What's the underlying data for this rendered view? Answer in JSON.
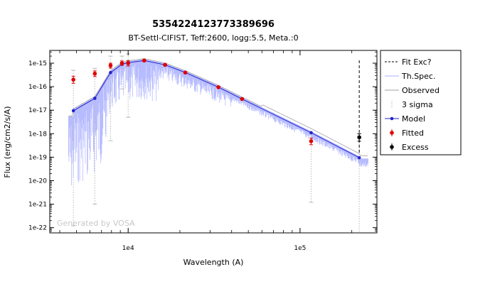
{
  "chart_data": {
    "type": "scatter",
    "title": "5354224123773389696",
    "subtitle": "BT-Settl-CIFIST, Teff:2600, logg:5.5, Meta.:0",
    "xlabel": "Wavelength (A)",
    "ylabel": "Flux (erg/cm2/s/A)",
    "x_scale": "log",
    "y_scale": "log",
    "xlim": [
      3500,
      280000
    ],
    "ylim": [
      6e-23,
      3.5e-15
    ],
    "x_tick_labels": [
      {
        "value": 10000,
        "label": "1e4"
      },
      {
        "value": 100000,
        "label": "1e5"
      }
    ],
    "y_tick_labels": [
      {
        "value": 1e-15,
        "label": "1e-15"
      },
      {
        "value": 1e-16,
        "label": "1e-16"
      },
      {
        "value": 1e-17,
        "label": "1e-17"
      },
      {
        "value": 1e-18,
        "label": "1e-18"
      },
      {
        "value": 1e-19,
        "label": "1e-19"
      },
      {
        "value": 1e-20,
        "label": "1e-20"
      },
      {
        "value": 1e-21,
        "label": "1e-21"
      },
      {
        "value": 1e-22,
        "label": "1e-22"
      }
    ],
    "grid": false,
    "legend_position": "right",
    "legend": [
      {
        "key": "fit_exc",
        "label": "Fit Exc?"
      },
      {
        "key": "th_spec",
        "label": "Th.Spec."
      },
      {
        "key": "observed",
        "label": "Observed"
      },
      {
        "key": "sigma",
        "label": "3 sigma"
      },
      {
        "key": "model",
        "label": "Model"
      },
      {
        "key": "fitted",
        "label": "Fitted"
      },
      {
        "key": "excess",
        "label": "Excess"
      }
    ],
    "colors": {
      "model": "#2222cc",
      "fitted": "#dd0000",
      "excess": "#000000",
      "th_spec": "#aab0ff",
      "observed": "#a0a0a0",
      "sigma": "#b8b8b8"
    },
    "watermark": "Generated by VOSA",
    "model_points": [
      {
        "x": 4800,
        "y": 9.5e-18
      },
      {
        "x": 6400,
        "y": 3.2e-17
      },
      {
        "x": 7900,
        "y": 4e-16
      },
      {
        "x": 9200,
        "y": 9e-16
      },
      {
        "x": 10000,
        "y": 1.05e-15
      },
      {
        "x": 12400,
        "y": 1.3e-15
      },
      {
        "x": 16400,
        "y": 8.5e-16
      },
      {
        "x": 21500,
        "y": 4e-16
      },
      {
        "x": 33500,
        "y": 9.5e-17
      },
      {
        "x": 46000,
        "y": 3e-17
      },
      {
        "x": 116000,
        "y": 1.1e-18
      },
      {
        "x": 221000,
        "y": 9.5e-20
      }
    ],
    "fitted_points": [
      {
        "x": 4800,
        "y": 2e-16,
        "ylo": 1.4e-16,
        "yhi": 2.8e-16
      },
      {
        "x": 6400,
        "y": 3.6e-16,
        "ylo": 2.7e-16,
        "yhi": 4.7e-16
      },
      {
        "x": 7900,
        "y": 8e-16,
        "ylo": 6.2e-16,
        "yhi": 1e-15
      },
      {
        "x": 9200,
        "y": 1e-15,
        "ylo": 8.2e-16,
        "yhi": 1.25e-15
      },
      {
        "x": 10000,
        "y": 1e-15,
        "ylo": 7.6e-16,
        "yhi": 1.3e-15
      },
      {
        "x": 12400,
        "y": 1.3e-15,
        "ylo": 1.2e-15,
        "yhi": 1.4e-15
      },
      {
        "x": 16400,
        "y": 8.5e-16,
        "ylo": 8e-16,
        "yhi": 9e-16
      },
      {
        "x": 21500,
        "y": 4e-16,
        "ylo": 3.7e-16,
        "yhi": 4.3e-16
      },
      {
        "x": 33500,
        "y": 9.5e-17,
        "ylo": 8.8e-17,
        "yhi": 1.02e-16
      },
      {
        "x": 46000,
        "y": 3e-17,
        "ylo": 2.8e-17,
        "yhi": 3.2e-17
      },
      {
        "x": 116000,
        "y": 4.8e-19,
        "ylo": 3.4e-19,
        "yhi": 6.5e-19
      }
    ],
    "excess_points": [
      {
        "x": 221000,
        "y": 7e-19,
        "ylo": 4.8e-19,
        "yhi": 1e-18
      }
    ],
    "sigma_ranges": [
      {
        "x": 4800,
        "ylo": 1.2e-22,
        "yhi": 5e-16
      },
      {
        "x": 6400,
        "ylo": 1e-21,
        "yhi": 6e-16
      },
      {
        "x": 7900,
        "ylo": 5e-19,
        "yhi": 2e-15
      },
      {
        "x": 9200,
        "ylo": 8e-17,
        "yhi": 2e-15
      },
      {
        "x": 10000,
        "ylo": 5e-18,
        "yhi": 2.5e-15
      },
      {
        "x": 116000,
        "ylo": 1.2e-21,
        "yhi": 1e-18
      },
      {
        "x": 221000,
        "ylo": 6e-23,
        "yhi": 1e-18
      }
    ],
    "fit_excess_x": 221000
  }
}
